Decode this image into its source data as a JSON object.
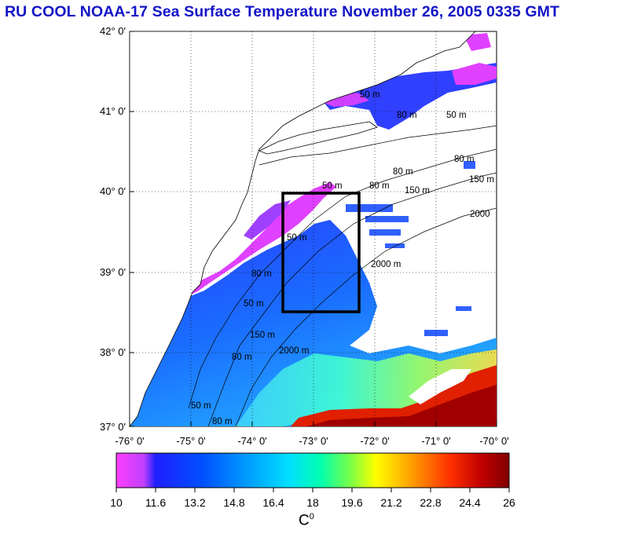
{
  "title": "RU COOL  NOAA-17 Sea Surface Temperature November 26, 2005 0335 GMT",
  "map": {
    "y_ticks": [
      "42° 0'",
      "41° 0'",
      "40° 0'",
      "39° 0'",
      "38° 0'",
      "37° 0'"
    ],
    "x_ticks": [
      "-76° 0'",
      "-75° 0'",
      "-74° 0'",
      "-73° 0'",
      "-72° 0'",
      "-71° 0'",
      "-70° 0'"
    ],
    "lat_range": [
      37,
      42
    ],
    "lon_range": [
      -76,
      -70
    ],
    "study_box": {
      "lon": [
        -73.5,
        -72.5
      ],
      "lat": [
        38.5,
        40.0
      ]
    },
    "contour_labels": [
      "50 m",
      "50 m",
      "80 m",
      "80 m",
      "80 m",
      "150 m",
      "150 m",
      "2000",
      "2000 m",
      "50 m",
      "50 m",
      "50 m",
      "80 m",
      "150 m",
      "2000 m",
      "80 m",
      "50 m",
      "80 m",
      "80 m"
    ]
  },
  "colorbar": {
    "ticks": [
      "10",
      "11.6",
      "13.2",
      "14.8",
      "16.4",
      "18",
      "19.6",
      "21.2",
      "22.8",
      "24.4",
      "26"
    ],
    "range": [
      10,
      26
    ],
    "unit": "C",
    "unit_sup": "0",
    "colors": [
      "#ff40ff",
      "#c040ff",
      "#2020ff",
      "#0050ff",
      "#0090ff",
      "#00d0ff",
      "#00ffd0",
      "#40ff80",
      "#b0ff30",
      "#ffff00",
      "#ffb000",
      "#ff6000",
      "#ff1000",
      "#c00000",
      "#800000"
    ]
  }
}
